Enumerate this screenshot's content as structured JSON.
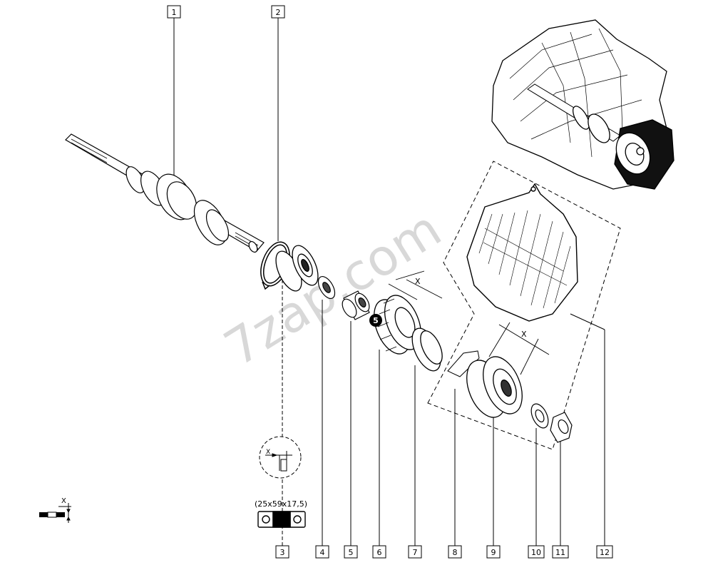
{
  "callouts": [
    {
      "id": "1",
      "label": "1"
    },
    {
      "id": "2",
      "label": "2"
    },
    {
      "id": "3",
      "label": "3"
    },
    {
      "id": "4",
      "label": "4"
    },
    {
      "id": "5",
      "label": "5"
    },
    {
      "id": "6",
      "label": "6"
    },
    {
      "id": "7",
      "label": "7"
    },
    {
      "id": "8",
      "label": "8"
    },
    {
      "id": "9",
      "label": "9"
    },
    {
      "id": "10",
      "label": "10"
    },
    {
      "id": "11",
      "label": "11"
    },
    {
      "id": "12",
      "label": "12"
    }
  ],
  "gear_marker": "5",
  "dim_x": "X",
  "bearing_dims": "(25x59x17,5)",
  "watermark": "7zap.com"
}
